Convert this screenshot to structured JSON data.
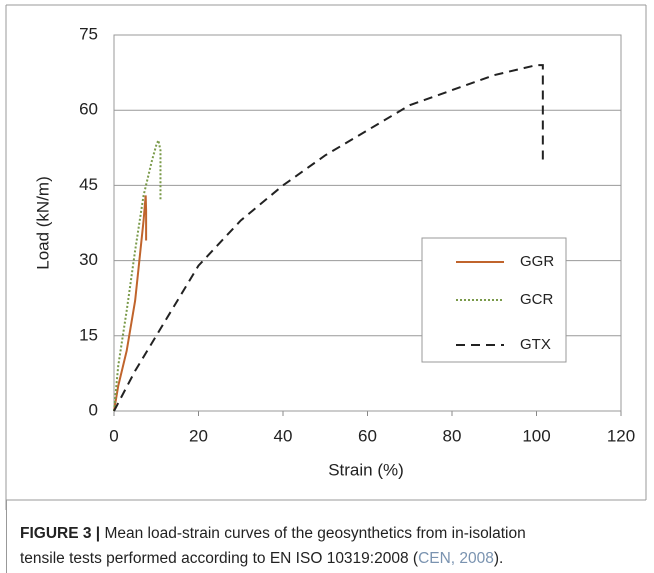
{
  "chart_data": {
    "type": "line",
    "xlabel": "Strain (%)",
    "ylabel": "Load (kN/m)",
    "xlim": [
      0,
      120
    ],
    "xticks": [
      0,
      20,
      40,
      60,
      80,
      100,
      120
    ],
    "ylim": [
      0,
      75
    ],
    "yticks": [
      0,
      15,
      30,
      45,
      60,
      75
    ],
    "grid": true,
    "legend": "right",
    "series": [
      {
        "name": "GGR",
        "color": "#c0642c",
        "dash": "solid",
        "x": [
          0,
          1,
          3,
          5,
          6,
          7,
          7.5,
          7.6,
          7.6
        ],
        "values": [
          0,
          5,
          12,
          22,
          30,
          38,
          43,
          40,
          34
        ]
      },
      {
        "name": "GCR",
        "color": "#7a9a4a",
        "dash": "dotted",
        "x": [
          0,
          1,
          3,
          5,
          7,
          9,
          10,
          10.5,
          11,
          11,
          11
        ],
        "values": [
          0,
          9,
          20,
          32,
          43,
          50,
          53,
          54,
          52,
          47,
          42
        ]
      },
      {
        "name": "GTX",
        "color": "#222222",
        "dash": "dashed",
        "x": [
          0,
          5,
          10,
          20,
          30,
          40,
          50,
          60,
          70,
          80,
          90,
          100,
          101.5,
          101.5,
          101.5
        ],
        "values": [
          0,
          8,
          15,
          29,
          38,
          45,
          51,
          56,
          61,
          64,
          67,
          69,
          69,
          60,
          49
        ]
      }
    ]
  },
  "caption": {
    "label": "FIGURE 3 |",
    "line1": "Mean load-strain curves of the geosynthetics from in-isolation",
    "line2": "tensile tests performed according to EN ISO 10319:2008 (",
    "link": "CEN, 2008",
    "end": ")."
  }
}
